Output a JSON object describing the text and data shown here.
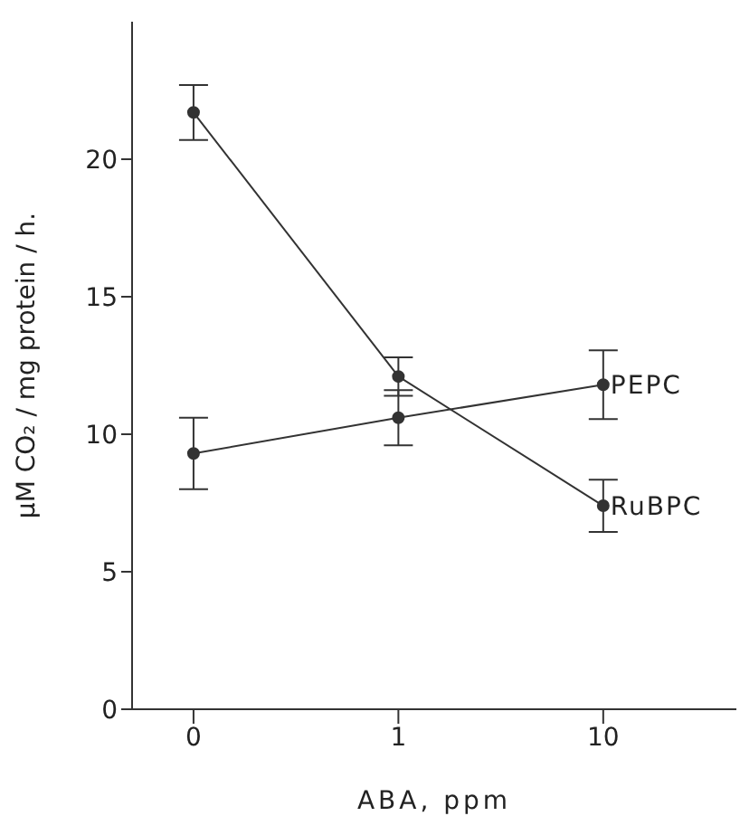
{
  "chart_data": {
    "type": "line",
    "xlabel": "ABA, ppm",
    "ylabel": "μM CO₂ / mg protein / h.",
    "categories": [
      "0",
      "1",
      "10"
    ],
    "series": [
      {
        "name": "PEPC",
        "color": "#333333",
        "values": [
          9.3,
          10.6,
          11.8
        ],
        "errors": [
          1.3,
          1.0,
          1.25
        ]
      },
      {
        "name": "RuBPC",
        "color": "#333333",
        "values": [
          21.7,
          12.1,
          7.4
        ],
        "errors": [
          1.0,
          0.7,
          0.95
        ]
      }
    ],
    "ylim": [
      0,
      25
    ],
    "yticks": [
      0,
      5,
      10,
      15,
      20
    ],
    "grid": false,
    "legend": false,
    "marker": "circle",
    "line_style": "solid"
  }
}
